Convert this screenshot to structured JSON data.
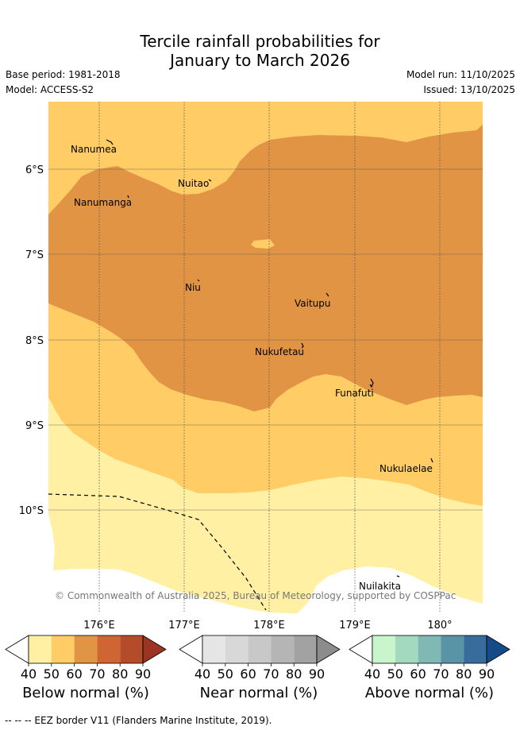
{
  "header": {
    "title_line1": "Tercile rainfall probabilities for",
    "title_line2": "January to March 2026",
    "base_period": "Base period: 1981-2018",
    "model": "Model: ACCESS-S2",
    "model_run": "Model run: 11/10/2025",
    "issued": "Issued: 13/10/2025"
  },
  "map": {
    "lat_labels": [
      "6°S",
      "7°S",
      "8°S",
      "9°S",
      "10°S"
    ],
    "lon_labels": [
      "176°E",
      "177°E",
      "178°E",
      "179°E",
      "180°"
    ],
    "places": [
      "Nanumea",
      "Nuitao",
      "Nanumanga",
      "Niu",
      "Vaitupu",
      "Nukufetau",
      "Funafuti",
      "Nukulaelae",
      "Nuilakita"
    ],
    "copyright": "© Commonwealth of Australia 2025, Bureau of Meteorology, supported by COSPPac",
    "colors": {
      "below_40": "#fff0a3",
      "below_50": "#ffcc66",
      "below_60": "#e09444",
      "land": "#000000"
    }
  },
  "colorbars": [
    {
      "label": "Below normal (%)",
      "ticks": [
        "40",
        "50",
        "60",
        "70",
        "80",
        "90"
      ],
      "colors": [
        "#ffffff",
        "#fff0a3",
        "#ffcc66",
        "#e09444",
        "#cf6533",
        "#b44c2a",
        "#9b3521"
      ]
    },
    {
      "label": "Near normal (%)",
      "ticks": [
        "40",
        "50",
        "60",
        "70",
        "80",
        "90"
      ],
      "colors": [
        "#ffffff",
        "#e5e5e5",
        "#d8d8d8",
        "#c8c8c8",
        "#b5b5b5",
        "#a2a2a2",
        "#8c8c8c"
      ]
    },
    {
      "label": "Above normal (%)",
      "ticks": [
        "40",
        "50",
        "60",
        "70",
        "80",
        "90"
      ],
      "colors": [
        "#ffffff",
        "#c8f5cb",
        "#a2d9bf",
        "#80b8b3",
        "#5993a6",
        "#376c9d",
        "#154b86"
      ]
    }
  ],
  "footer": {
    "legend_text": "-- -- -- EEZ border V11 (Flanders Marine Institute, 2019)."
  }
}
